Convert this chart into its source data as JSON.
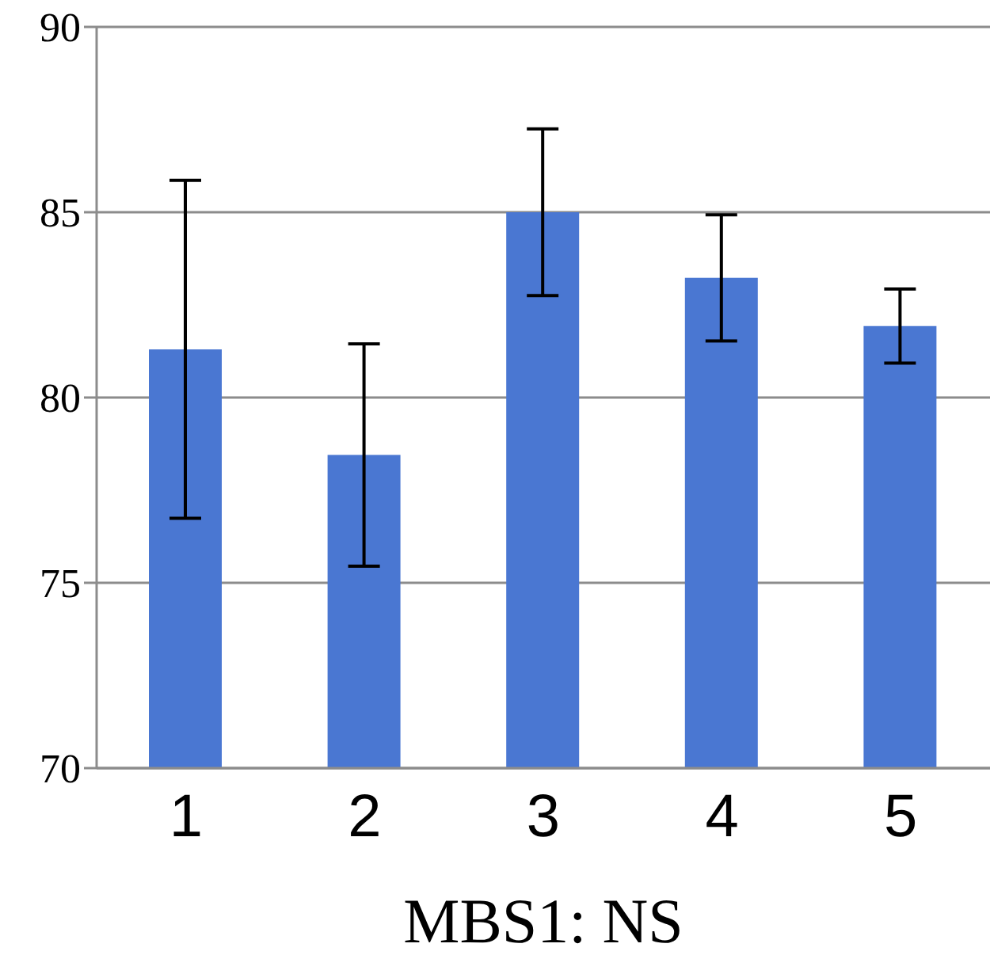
{
  "chart_data": {
    "type": "bar",
    "xlabel": "MBS1: NS",
    "categories": [
      "1",
      "2",
      "3",
      "4",
      "5"
    ],
    "values": [
      81.3,
      78.45,
      85.0,
      83.23,
      81.93
    ],
    "errors": [
      4.56,
      3.0,
      2.25,
      1.7,
      1.0
    ],
    "color": "#4a77d2",
    "ylim": [
      70,
      90
    ],
    "yticks": [
      70,
      75,
      80,
      85,
      90
    ],
    "grid": "y",
    "legend": false
  }
}
